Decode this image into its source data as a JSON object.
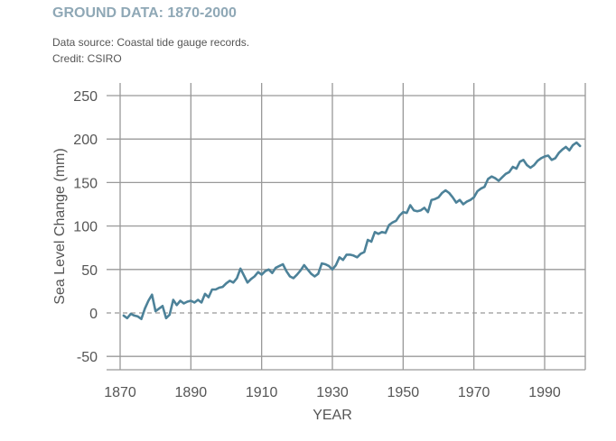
{
  "header": {
    "title": "GROUND DATA: 1870-2000",
    "source": "Data source: Coastal tide gauge records.",
    "credit": "Credit: CSIRO"
  },
  "colors": {
    "line": "#4d8299",
    "grid": "#999999",
    "zero_line": "#999999",
    "title": "#8fa8b6"
  },
  "chart_data": {
    "type": "line",
    "title": "GROUND DATA: 1870-2000",
    "xlabel": "YEAR",
    "ylabel": "Sea Level Change (mm)",
    "xlim": [
      1870,
      2003
    ],
    "ylim": [
      -50,
      250
    ],
    "x_ticks": [
      1870,
      1890,
      1910,
      1930,
      1950,
      1970,
      1990
    ],
    "y_ticks": [
      -50,
      0,
      50,
      100,
      150,
      200,
      250
    ],
    "x_tick_labels": [
      "1870",
      "1890",
      "1910",
      "1930",
      "1950",
      "1970",
      "1990"
    ],
    "y_tick_labels": [
      "-50",
      "0",
      "50",
      "100",
      "150",
      "200",
      "250"
    ],
    "zero_line": "dashed",
    "grid": true,
    "series": [
      {
        "name": "Sea level",
        "x": [
          1871,
          1872,
          1873,
          1874,
          1875,
          1876,
          1877,
          1878,
          1879,
          1880,
          1881,
          1882,
          1883,
          1884,
          1885,
          1886,
          1887,
          1888,
          1889,
          1890,
          1891,
          1892,
          1893,
          1894,
          1895,
          1896,
          1897,
          1898,
          1899,
          1900,
          1901,
          1902,
          1903,
          1904,
          1905,
          1906,
          1907,
          1908,
          1909,
          1910,
          1911,
          1912,
          1913,
          1914,
          1915,
          1916,
          1917,
          1918,
          1919,
          1920,
          1921,
          1922,
          1923,
          1924,
          1925,
          1926,
          1927,
          1928,
          1929,
          1930,
          1931,
          1932,
          1933,
          1934,
          1935,
          1936,
          1937,
          1938,
          1939,
          1940,
          1941,
          1942,
          1943,
          1944,
          1945,
          1946,
          1947,
          1948,
          1949,
          1950,
          1951,
          1952,
          1953,
          1954,
          1955,
          1956,
          1957,
          1958,
          1959,
          1960,
          1961,
          1962,
          1963,
          1964,
          1965,
          1966,
          1967,
          1968,
          1969,
          1970,
          1971,
          1972,
          1973,
          1974,
          1975,
          1976,
          1977,
          1978,
          1979,
          1980,
          1981,
          1982,
          1983,
          1984,
          1985,
          1986,
          1987,
          1988,
          1989,
          1990,
          1991,
          1992,
          1993,
          1994,
          1995,
          1996,
          1997,
          1998,
          1999,
          2000
        ],
        "values": [
          -3,
          -6,
          -1,
          -3,
          -4,
          -7,
          5,
          14,
          21,
          2,
          5,
          8,
          -6,
          -2,
          15,
          9,
          14,
          11,
          13,
          14,
          12,
          15,
          12,
          22,
          18,
          27,
          27,
          29,
          30,
          34,
          37,
          35,
          40,
          51,
          43,
          35,
          39,
          42,
          47,
          44,
          48,
          50,
          46,
          52,
          54,
          56,
          48,
          42,
          40,
          44,
          49,
          55,
          50,
          45,
          42,
          45,
          57,
          56,
          54,
          50,
          55,
          64,
          61,
          67,
          67,
          66,
          64,
          68,
          70,
          84,
          82,
          93,
          91,
          93,
          92,
          101,
          104,
          106,
          112,
          116,
          115,
          124,
          118,
          117,
          118,
          121,
          116,
          130,
          131,
          133,
          138,
          141,
          138,
          133,
          127,
          130,
          125,
          128,
          130,
          133,
          140,
          143,
          145,
          154,
          157,
          155,
          152,
          156,
          160,
          162,
          168,
          166,
          174,
          176,
          170,
          167,
          170,
          175,
          178,
          180,
          181,
          176,
          178,
          184,
          188,
          191,
          187,
          193,
          196,
          192
        ]
      }
    ]
  }
}
